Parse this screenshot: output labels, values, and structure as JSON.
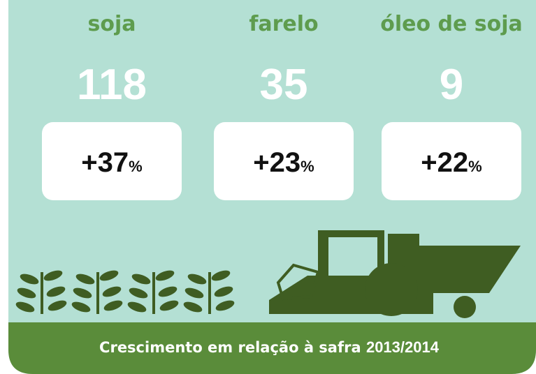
{
  "items": [
    {
      "label": "soja",
      "value": "118",
      "growth": "+37",
      "unit": "%"
    },
    {
      "label": "farelo",
      "value": "35",
      "growth": "+23",
      "unit": "%"
    },
    {
      "label": "óleo de soja",
      "value": "9",
      "growth": "+22",
      "unit": "%"
    }
  ],
  "footer": {
    "text": "Crescimento em relação à safra",
    "period": "2013/2014"
  }
}
